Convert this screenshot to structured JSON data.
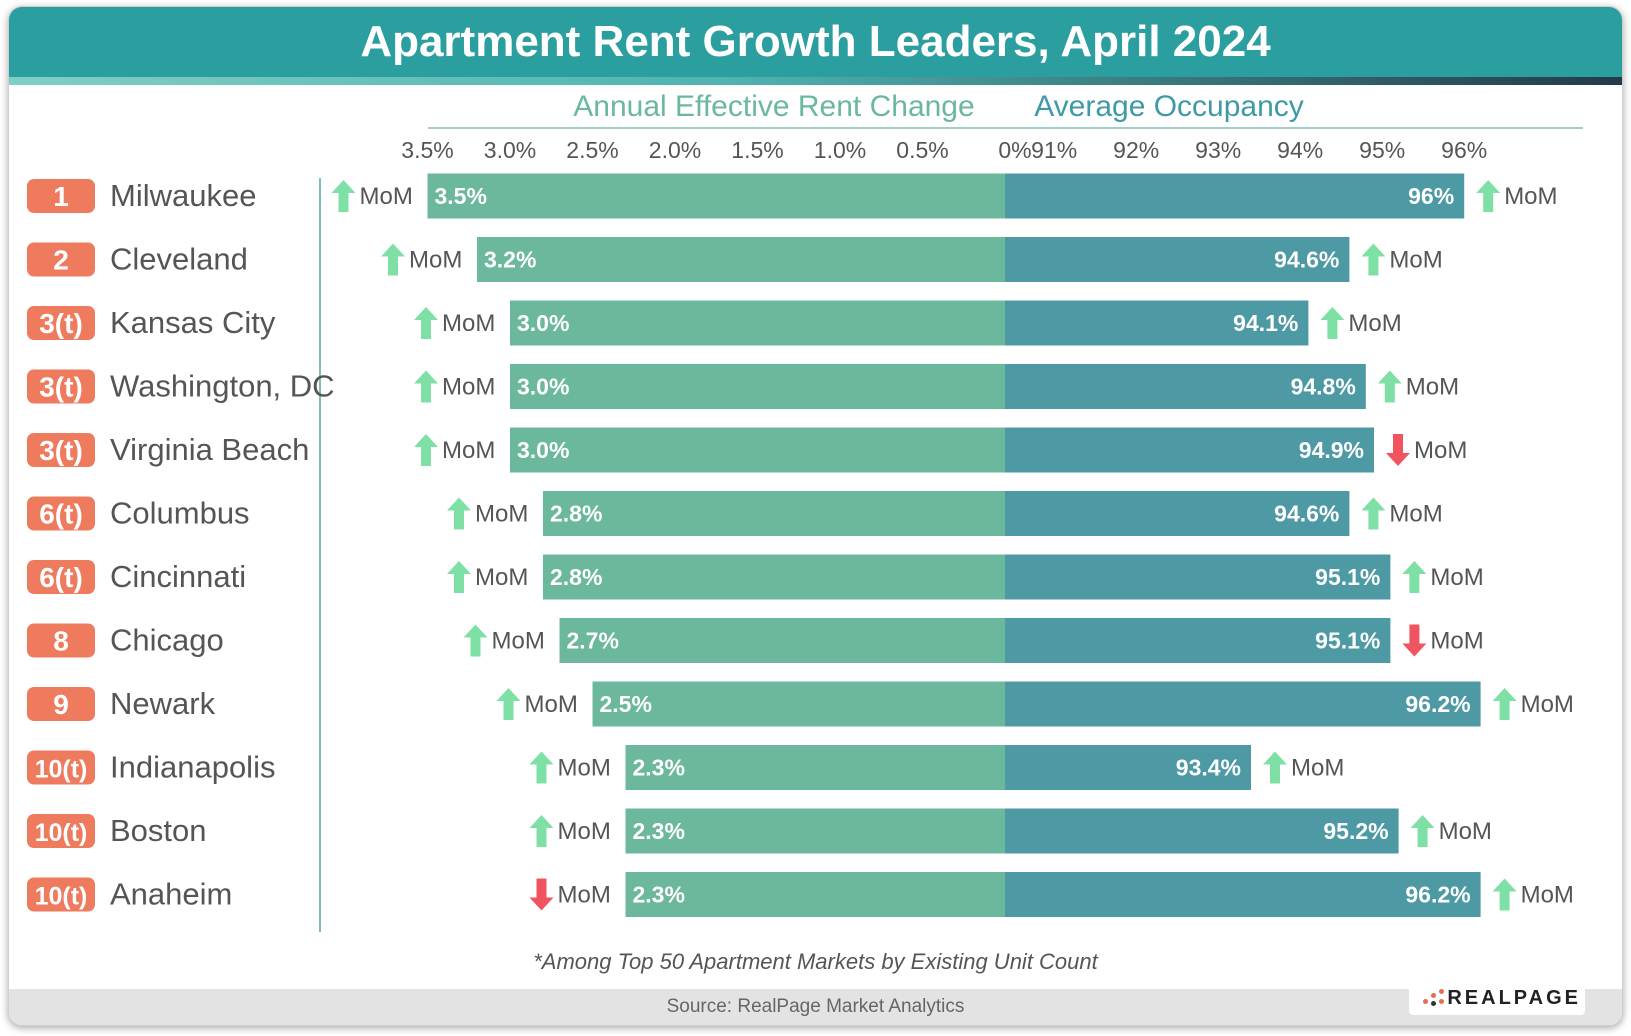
{
  "title": "Apartment Rent Growth Leaders, April 2024",
  "footnote": "*Among Top 50 Apartment Markets by Existing Unit Count",
  "source": "Source: RealPage Market Analytics",
  "logo_text": "REALPAGE",
  "colors": {
    "header": "#2b9e9f",
    "rent_bar": "#6bb89d",
    "occupancy_bar": "#4d9aa5",
    "rent_label": "#6bb89d",
    "occupancy_label": "#3d9aa6",
    "rank_badge": "#ee7b5e",
    "arrow_up": "#7fe0a6",
    "arrow_down": "#f0545f",
    "text_dark": "#555555"
  },
  "chart_data": {
    "type": "bar",
    "orientation": "horizontal-diverging",
    "left_axis_label": "Annual Effective Rent Change",
    "right_axis_label": "Average Occupancy",
    "left_ticks": [
      "3.5%",
      "3.0%",
      "2.5%",
      "2.0%",
      "1.5%",
      "1.0%",
      "0.5%",
      "0%"
    ],
    "right_ticks": [
      "91%",
      "92%",
      "93%",
      "94%",
      "95%",
      "96%"
    ],
    "left_range": [
      0,
      3.5
    ],
    "right_range": [
      90,
      96
    ],
    "mom_label": "MoM",
    "series": [
      {
        "name": "Annual Effective Rent Change",
        "values": [
          3.5,
          3.2,
          3.0,
          3.0,
          3.0,
          2.8,
          2.8,
          2.7,
          2.5,
          2.3,
          2.3,
          2.3
        ]
      },
      {
        "name": "Average Occupancy",
        "values": [
          96.0,
          94.6,
          94.1,
          94.8,
          94.9,
          94.6,
          95.1,
          95.1,
          96.2,
          93.4,
          95.2,
          96.2
        ]
      }
    ],
    "rows": [
      {
        "rank": "1",
        "market": "Milwaukee",
        "rent": 3.5,
        "rent_label": "3.5%",
        "rent_mom": "up",
        "occ": 96.0,
        "occ_label": "96%",
        "occ_mom": "up"
      },
      {
        "rank": "2",
        "market": "Cleveland",
        "rent": 3.2,
        "rent_label": "3.2%",
        "rent_mom": "up",
        "occ": 94.6,
        "occ_label": "94.6%",
        "occ_mom": "up"
      },
      {
        "rank": "3(t)",
        "market": "Kansas City",
        "rent": 3.0,
        "rent_label": "3.0%",
        "rent_mom": "up",
        "occ": 94.1,
        "occ_label": "94.1%",
        "occ_mom": "up"
      },
      {
        "rank": "3(t)",
        "market": "Washington, DC",
        "rent": 3.0,
        "rent_label": "3.0%",
        "rent_mom": "up",
        "occ": 94.8,
        "occ_label": "94.8%",
        "occ_mom": "up"
      },
      {
        "rank": "3(t)",
        "market": "Virginia Beach",
        "rent": 3.0,
        "rent_label": "3.0%",
        "rent_mom": "up",
        "occ": 94.9,
        "occ_label": "94.9%",
        "occ_mom": "down"
      },
      {
        "rank": "6(t)",
        "market": "Columbus",
        "rent": 2.8,
        "rent_label": "2.8%",
        "rent_mom": "up",
        "occ": 94.6,
        "occ_label": "94.6%",
        "occ_mom": "up"
      },
      {
        "rank": "6(t)",
        "market": "Cincinnati",
        "rent": 2.8,
        "rent_label": "2.8%",
        "rent_mom": "up",
        "occ": 95.1,
        "occ_label": "95.1%",
        "occ_mom": "up"
      },
      {
        "rank": "8",
        "market": "Chicago",
        "rent": 2.7,
        "rent_label": "2.7%",
        "rent_mom": "up",
        "occ": 95.1,
        "occ_label": "95.1%",
        "occ_mom": "down"
      },
      {
        "rank": "9",
        "market": "Newark",
        "rent": 2.5,
        "rent_label": "2.5%",
        "rent_mom": "up",
        "occ": 96.2,
        "occ_label": "96.2%",
        "occ_mom": "up"
      },
      {
        "rank": "10(t)",
        "market": "Indianapolis",
        "rent": 2.3,
        "rent_label": "2.3%",
        "rent_mom": "up",
        "occ": 93.4,
        "occ_label": "93.4%",
        "occ_mom": "up"
      },
      {
        "rank": "10(t)",
        "market": "Boston",
        "rent": 2.3,
        "rent_label": "2.3%",
        "rent_mom": "up",
        "occ": 95.2,
        "occ_label": "95.2%",
        "occ_mom": "up"
      },
      {
        "rank": "10(t)",
        "market": "Anaheim",
        "rent": 2.3,
        "rent_label": "2.3%",
        "rent_mom": "down",
        "occ": 96.2,
        "occ_label": "96.2%",
        "occ_mom": "up"
      }
    ]
  }
}
